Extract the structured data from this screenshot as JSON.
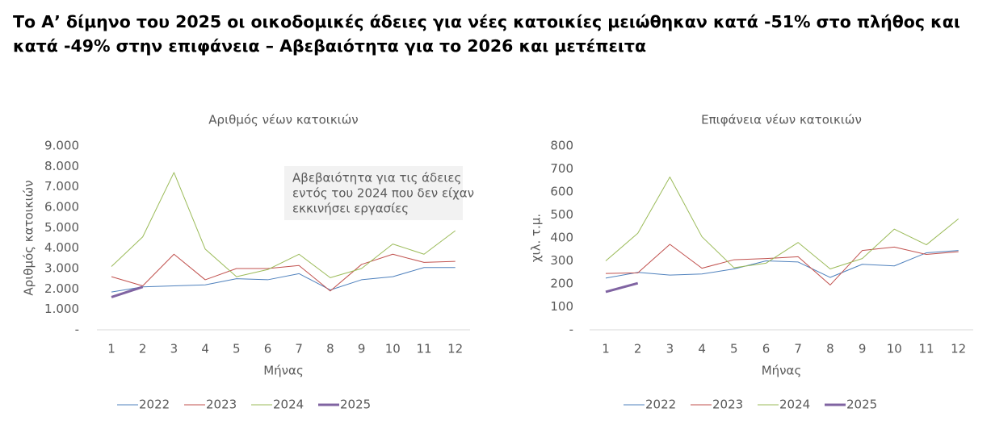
{
  "title": "Το Α’ δίμηνο του 2025 οι οικοδομικές άδειες για νέες κατοικίες μειώθηκαν κατά -51% στο πλήθος και κατά -49% στην επιφάνεια – Αβεβαιότητα για το 2026 και μετέπειτα",
  "chart_data": [
    {
      "type": "line",
      "title": "Αριθμός νέων κατοικιών",
      "xlabel": "Μήνας",
      "ylabel": "Αριθμός κατοικιών",
      "categories": [
        "1",
        "2",
        "3",
        "4",
        "5",
        "6",
        "7",
        "8",
        "9",
        "10",
        "11",
        "12"
      ],
      "ylim": [
        0,
        9000
      ],
      "yticks": [
        {
          "value": 0,
          "label": "-"
        },
        {
          "value": 1000,
          "label": "1.000"
        },
        {
          "value": 2000,
          "label": "2.000"
        },
        {
          "value": 3000,
          "label": "3.000"
        },
        {
          "value": 4000,
          "label": "4.000"
        },
        {
          "value": 5000,
          "label": "5.000"
        },
        {
          "value": 6000,
          "label": "6.000"
        },
        {
          "value": 7000,
          "label": "7.000"
        },
        {
          "value": 8000,
          "label": "8.000"
        },
        {
          "value": 9000,
          "label": "9.000"
        }
      ],
      "annotation": [
        "Αβεβαιότητα για τις άδειες",
        "εντός του 2024 που δεν είχαν",
        "εκκινήσει εργασίες"
      ],
      "series": [
        {
          "name": "2022",
          "color": "#4f81bd",
          "values": [
            1850,
            2100,
            2150,
            2200,
            2500,
            2450,
            2750,
            1950,
            2450,
            2600,
            3050,
            3050
          ]
        },
        {
          "name": "2023",
          "color": "#c0504d",
          "values": [
            2600,
            2150,
            3700,
            2450,
            3000,
            3000,
            3150,
            1900,
            3200,
            3700,
            3300,
            3350
          ]
        },
        {
          "name": "2024",
          "color": "#9bbb59",
          "values": [
            3100,
            4550,
            7700,
            3950,
            2600,
            2950,
            3700,
            2550,
            3000,
            4200,
            3700,
            4850
          ]
        },
        {
          "name": "2025",
          "color": "#8064a2",
          "values": [
            1600,
            2100,
            null,
            null,
            null,
            null,
            null,
            null,
            null,
            null,
            null,
            null
          ]
        }
      ]
    },
    {
      "type": "line",
      "title": "Επιφάνεια νέων κατοικιών",
      "xlabel": "Μήνας",
      "ylabel": "χιλ. τ.μ.",
      "categories": [
        "1",
        "2",
        "3",
        "4",
        "5",
        "6",
        "7",
        "8",
        "9",
        "10",
        "11",
        "12"
      ],
      "ylim": [
        0,
        800
      ],
      "yticks": [
        {
          "value": 0,
          "label": "-"
        },
        100,
        200,
        300,
        400,
        500,
        600,
        700,
        800
      ],
      "series": [
        {
          "name": "2022",
          "color": "#4f81bd",
          "values": [
            225,
            250,
            238,
            243,
            265,
            300,
            295,
            228,
            285,
            278,
            335,
            345
          ]
        },
        {
          "name": "2023",
          "color": "#c0504d",
          "values": [
            245,
            248,
            372,
            268,
            305,
            310,
            318,
            195,
            345,
            360,
            328,
            340
          ]
        },
        {
          "name": "2024",
          "color": "#9bbb59",
          "values": [
            300,
            420,
            665,
            405,
            270,
            290,
            380,
            265,
            310,
            438,
            370,
            483
          ]
        },
        {
          "name": "2025",
          "color": "#8064a2",
          "values": [
            165,
            203,
            null,
            null,
            null,
            null,
            null,
            null,
            null,
            null,
            null,
            null
          ]
        }
      ]
    }
  ]
}
